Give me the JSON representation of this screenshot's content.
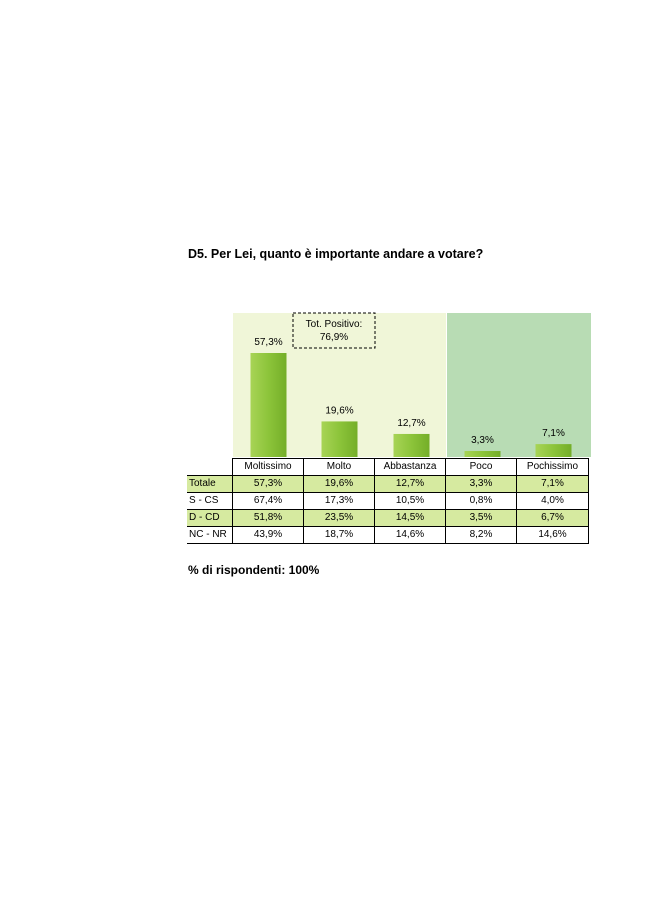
{
  "title": "D5. Per Lei, quanto è importante andare a votare?",
  "footnote": "% di rispondenti: 100%",
  "annotation": {
    "label": "Tot. Positivo:",
    "value": "76,9%"
  },
  "colors": {
    "bar": "#8cc43a",
    "positive_band": "#f0f6d8",
    "negative_band": "#b8dcb4",
    "row_highlight": "#d6eaa0"
  },
  "chart_data": {
    "type": "bar",
    "title": "D5. Per Lei, quanto è importante andare a votare?",
    "categories": [
      "Moltissimo",
      "Molto",
      "Abbastanza",
      "Poco",
      "Pochissimo"
    ],
    "values": [
      57.3,
      19.6,
      12.7,
      3.3,
      7.1
    ],
    "value_labels": [
      "57,3%",
      "19,6%",
      "12,7%",
      "3,3%",
      "7,1%"
    ],
    "ylim": [
      0,
      100
    ],
    "grid": false,
    "legend": "none",
    "table": {
      "rows": [
        {
          "label": "Totale",
          "values": [
            "57,3%",
            "19,6%",
            "12,7%",
            "3,3%",
            "7,1%"
          ]
        },
        {
          "label": "S - CS",
          "values": [
            "67,4%",
            "17,3%",
            "10,5%",
            "0,8%",
            "4,0%"
          ]
        },
        {
          "label": "D - CD",
          "values": [
            "51,8%",
            "23,5%",
            "14,5%",
            "3,5%",
            "6,7%"
          ]
        },
        {
          "label": "NC - NR",
          "values": [
            "43,9%",
            "18,7%",
            "14,6%",
            "8,2%",
            "14,6%"
          ]
        }
      ]
    }
  }
}
